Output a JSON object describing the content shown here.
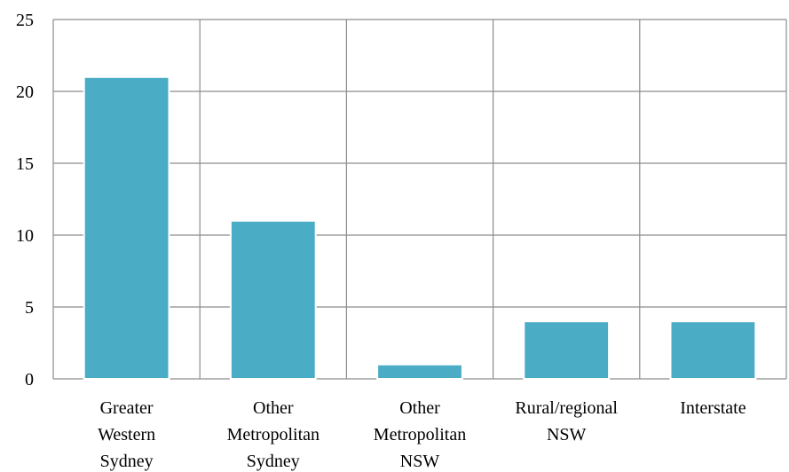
{
  "chart_data": {
    "type": "bar",
    "categories": [
      [
        "Greater",
        "Western",
        "Sydney"
      ],
      [
        "Other",
        "Metropolitan",
        "Sydney"
      ],
      [
        "Other",
        "Metropolitan",
        "NSW"
      ],
      [
        "Rural/regional",
        "NSW"
      ],
      [
        "Interstate"
      ]
    ],
    "values": [
      21,
      11,
      1,
      4,
      4
    ],
    "title": "",
    "xlabel": "",
    "ylabel": "",
    "ylim": [
      0,
      25
    ],
    "yticks": [
      "0",
      "5",
      "10",
      "15",
      "20",
      "25"
    ],
    "grid": true,
    "bar_color": "#4bacc6"
  }
}
